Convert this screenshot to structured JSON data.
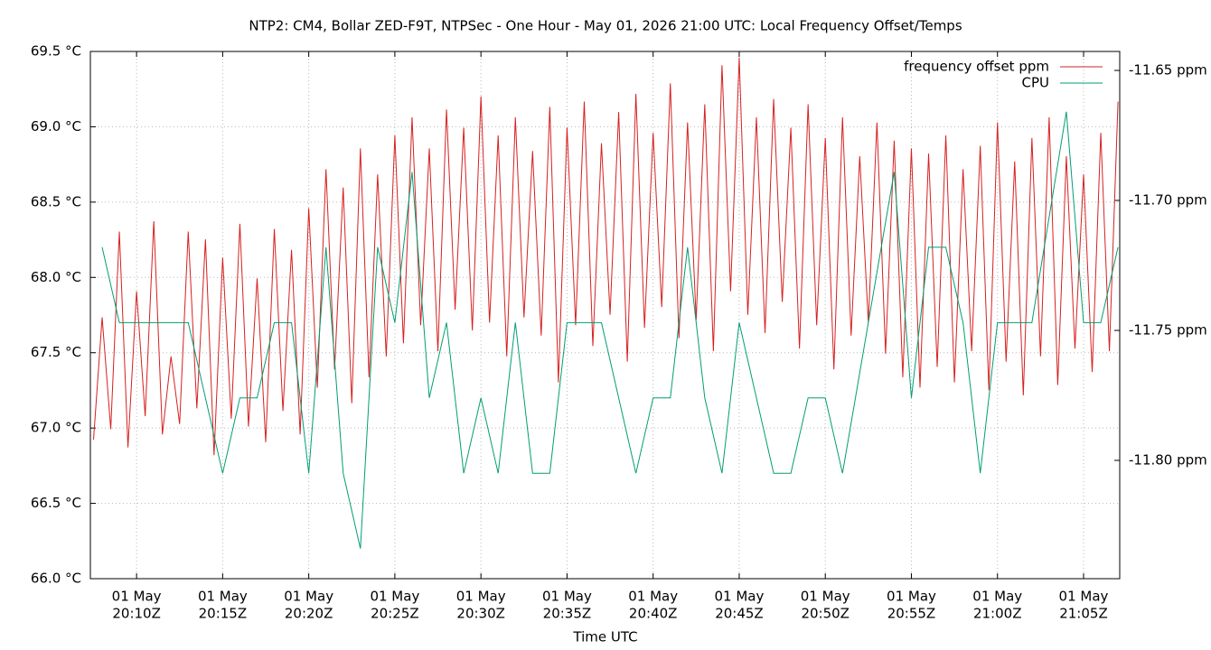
{
  "chart_data": {
    "type": "line",
    "title": "NTP2: CM4, Bollar ZED-F9T, NTPSec - One Hour - May 01, 2026 21:00 UTC: Local Frequency Offset/Temps",
    "xlabel": "Time UTC",
    "xlim": [
      "20:07:19",
      "21:07:06"
    ],
    "xticks": [
      {
        "value": "20:10:00",
        "label": [
          "01 May",
          "20:10Z"
        ]
      },
      {
        "value": "20:15:00",
        "label": [
          "01 May",
          "20:15Z"
        ]
      },
      {
        "value": "20:20:00",
        "label": [
          "01 May",
          "20:20Z"
        ]
      },
      {
        "value": "20:25:00",
        "label": [
          "01 May",
          "20:25Z"
        ]
      },
      {
        "value": "20:30:00",
        "label": [
          "01 May",
          "20:30Z"
        ]
      },
      {
        "value": "20:35:00",
        "label": [
          "01 May",
          "20:35Z"
        ]
      },
      {
        "value": "20:40:00",
        "label": [
          "01 May",
          "20:40Z"
        ]
      },
      {
        "value": "20:45:00",
        "label": [
          "01 May",
          "20:45Z"
        ]
      },
      {
        "value": "20:50:00",
        "label": [
          "01 May",
          "20:50Z"
        ]
      },
      {
        "value": "20:55:00",
        "label": [
          "01 May",
          "20:55Z"
        ]
      },
      {
        "value": "21:00:00",
        "label": [
          "01 May",
          "21:00Z"
        ]
      },
      {
        "value": "21:05:00",
        "label": [
          "01 May",
          "21:05Z"
        ]
      }
    ],
    "ylim": [
      66.0,
      69.5
    ],
    "yticks": [
      {
        "value": 66.0,
        "label": "66.0 °C"
      },
      {
        "value": 66.5,
        "label": "66.5 °C"
      },
      {
        "value": 67.0,
        "label": "67.0 °C"
      },
      {
        "value": 67.5,
        "label": "67.5 °C"
      },
      {
        "value": 68.0,
        "label": "68.0 °C"
      },
      {
        "value": 68.5,
        "label": "68.5 °C"
      },
      {
        "value": 69.0,
        "label": "69.0 °C"
      },
      {
        "value": 69.5,
        "label": "69.5 °C"
      }
    ],
    "ytick_color": "#0060ad",
    "y2lim": [
      -11.8455,
      -11.6427
    ],
    "y2ticks": [
      {
        "value": -11.8,
        "label": "-11.80 ppm"
      },
      {
        "value": -11.75,
        "label": "-11.75 ppm"
      },
      {
        "value": -11.7,
        "label": "-11.70 ppm"
      },
      {
        "value": -11.65,
        "label": "-11.65 ppm"
      }
    ],
    "grid": true,
    "legend": "top-right",
    "series": [
      {
        "name": "frequency offset ppm",
        "color": "#d62020",
        "axis": "y2",
        "x": [
          "20:07:30",
          "20:08:00",
          "20:08:30",
          "20:09:00",
          "20:09:30",
          "20:10:00",
          "20:10:30",
          "20:11:00",
          "20:11:30",
          "20:12:00",
          "20:12:30",
          "20:13:00",
          "20:13:30",
          "20:14:00",
          "20:14:30",
          "20:15:00",
          "20:15:30",
          "20:16:00",
          "20:16:30",
          "20:17:00",
          "20:17:30",
          "20:18:00",
          "20:18:30",
          "20:19:00",
          "20:19:30",
          "20:20:00",
          "20:20:30",
          "20:21:00",
          "20:21:30",
          "20:22:00",
          "20:22:30",
          "20:23:00",
          "20:23:30",
          "20:24:00",
          "20:24:30",
          "20:25:00",
          "20:25:30",
          "20:26:00",
          "20:26:30",
          "20:27:00",
          "20:27:30",
          "20:28:00",
          "20:28:30",
          "20:29:00",
          "20:29:30",
          "20:30:00",
          "20:30:30",
          "20:31:00",
          "20:31:30",
          "20:32:00",
          "20:32:30",
          "20:33:00",
          "20:33:30",
          "20:34:00",
          "20:34:30",
          "20:35:00",
          "20:35:30",
          "20:36:00",
          "20:36:30",
          "20:37:00",
          "20:37:30",
          "20:38:00",
          "20:38:30",
          "20:39:00",
          "20:39:30",
          "20:40:00",
          "20:40:30",
          "20:41:00",
          "20:41:30",
          "20:42:00",
          "20:42:30",
          "20:43:00",
          "20:43:30",
          "20:44:00",
          "20:44:30",
          "20:45:00",
          "20:45:30",
          "20:46:00",
          "20:46:30",
          "20:47:00",
          "20:47:30",
          "20:48:00",
          "20:48:30",
          "20:49:00",
          "20:49:30",
          "20:50:00",
          "20:50:30",
          "20:51:00",
          "20:51:30",
          "20:52:00",
          "20:52:30",
          "20:53:00",
          "20:53:30",
          "20:54:00",
          "20:54:30",
          "20:55:00",
          "20:55:30",
          "20:56:00",
          "20:56:30",
          "20:57:00",
          "20:57:30",
          "20:58:00",
          "20:58:30",
          "20:59:00",
          "20:59:30",
          "21:00:00",
          "21:00:30",
          "21:01:00",
          "21:01:30",
          "21:02:00",
          "21:02:30",
          "21:03:00",
          "21:03:30",
          "21:04:00",
          "21:04:30",
          "21:05:00",
          "21:05:30",
          "21:06:00",
          "21:06:30",
          "21:07:00"
        ],
        "values": [
          -11.792,
          -11.745,
          -11.788,
          -11.712,
          -11.795,
          -11.735,
          -11.783,
          -11.708,
          -11.79,
          -11.76,
          -11.786,
          -11.712,
          -11.78,
          -11.715,
          -11.798,
          -11.722,
          -11.784,
          -11.709,
          -11.787,
          -11.73,
          -11.793,
          -11.711,
          -11.781,
          -11.719,
          -11.79,
          -11.703,
          -11.772,
          -11.688,
          -11.765,
          -11.695,
          -11.778,
          -11.68,
          -11.768,
          -11.69,
          -11.76,
          -11.675,
          -11.755,
          -11.668,
          -11.748,
          -11.68,
          -11.758,
          -11.665,
          -11.742,
          -11.672,
          -11.75,
          -11.66,
          -11.747,
          -11.675,
          -11.76,
          -11.668,
          -11.745,
          -11.681,
          -11.752,
          -11.664,
          -11.77,
          -11.672,
          -11.748,
          -11.662,
          -11.756,
          -11.678,
          -11.744,
          -11.666,
          -11.762,
          -11.659,
          -11.749,
          -11.674,
          -11.741,
          -11.655,
          -11.753,
          -11.67,
          -11.746,
          -11.663,
          -11.758,
          -11.648,
          -11.735,
          -11.645,
          -11.744,
          -11.668,
          -11.751,
          -11.661,
          -11.739,
          -11.672,
          -11.757,
          -11.663,
          -11.748,
          -11.676,
          -11.765,
          -11.668,
          -11.752,
          -11.683,
          -11.747,
          -11.67,
          -11.759,
          -11.677,
          -11.768,
          -11.68,
          -11.772,
          -11.682,
          -11.764,
          -11.675,
          -11.77,
          -11.688,
          -11.758,
          -11.679,
          -11.773,
          -11.67,
          -11.762,
          -11.685,
          -11.775,
          -11.676,
          -11.76,
          -11.668,
          -11.771,
          -11.683,
          -11.757,
          -11.69,
          -11.766,
          -11.674,
          -11.758,
          -11.662
        ]
      },
      {
        "name": "CPU",
        "color": "#009e73",
        "axis": "y",
        "x": [
          "20:08:00",
          "20:09:00",
          "20:13:00",
          "20:15:00",
          "20:16:00",
          "20:17:00",
          "20:18:00",
          "20:19:00",
          "20:20:00",
          "20:21:00",
          "20:22:00",
          "20:23:00",
          "20:24:00",
          "20:25:00",
          "20:26:00",
          "20:27:00",
          "20:28:00",
          "20:29:00",
          "20:30:00",
          "20:31:00",
          "20:32:00",
          "20:33:00",
          "20:34:00",
          "20:35:00",
          "20:37:00",
          "20:39:00",
          "20:40:00",
          "20:41:00",
          "20:42:00",
          "20:43:00",
          "20:44:00",
          "20:45:00",
          "20:47:00",
          "20:48:00",
          "20:49:00",
          "20:50:00",
          "20:51:00",
          "20:54:00",
          "20:55:00",
          "20:56:00",
          "20:57:00",
          "20:58:00",
          "20:59:00",
          "21:00:00",
          "21:02:00",
          "21:04:00",
          "21:05:00",
          "21:06:00",
          "21:07:00"
        ],
        "values": [
          68.2,
          67.7,
          67.7,
          66.7,
          67.2,
          67.2,
          67.7,
          67.7,
          66.7,
          68.2,
          66.7,
          66.2,
          68.2,
          67.7,
          68.7,
          67.2,
          67.7,
          66.7,
          67.2,
          66.7,
          67.7,
          66.7,
          66.7,
          67.7,
          67.7,
          66.7,
          67.2,
          67.2,
          68.2,
          67.2,
          66.7,
          67.7,
          66.7,
          66.7,
          67.2,
          67.2,
          66.7,
          68.7,
          67.2,
          68.2,
          68.2,
          67.7,
          66.7,
          67.7,
          67.7,
          69.1,
          67.7,
          67.7,
          68.2
        ]
      }
    ]
  }
}
